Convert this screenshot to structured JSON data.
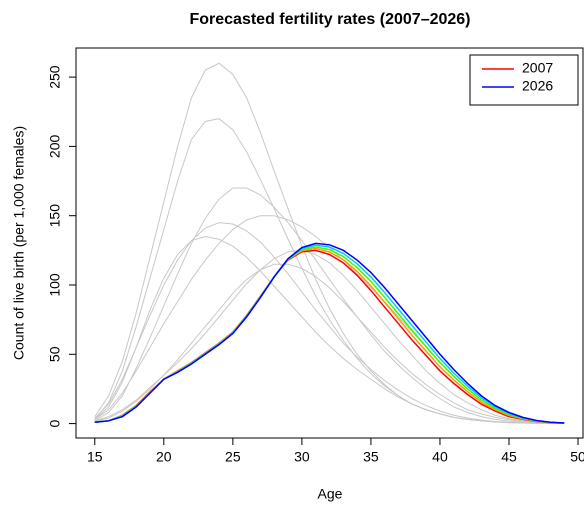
{
  "chart_data": {
    "type": "line",
    "title": "Forecasted fertility rates (2007–2026)",
    "xlabel": "Age",
    "ylabel": "Count of live birth (per 1,000 females)",
    "x": [
      15,
      16,
      17,
      18,
      19,
      20,
      21,
      22,
      23,
      24,
      25,
      26,
      27,
      28,
      29,
      30,
      31,
      32,
      33,
      34,
      35,
      36,
      37,
      38,
      39,
      40,
      41,
      42,
      43,
      44,
      45,
      46,
      47,
      48,
      49
    ],
    "series": [
      {
        "color": "#c8c8c8",
        "values": [
          5,
          20,
          45,
          80,
          120,
          160,
          200,
          235,
          255,
          260,
          252,
          235,
          210,
          182,
          155,
          128,
          104,
          83,
          65,
          50,
          38,
          28,
          20,
          14,
          10,
          7,
          4.5,
          3,
          2,
          1.2,
          0.7,
          0.4,
          0.2,
          0.1,
          0.05
        ]
      },
      {
        "color": "#c8c8c8",
        "values": [
          3,
          15,
          38,
          70,
          105,
          140,
          175,
          205,
          218,
          220,
          212,
          196,
          176,
          155,
          133,
          112,
          92,
          75,
          60,
          47,
          36,
          27,
          20,
          14,
          10,
          7,
          4.5,
          3,
          2,
          1.2,
          0.7,
          0.4,
          0.2,
          0.1,
          0.05
        ]
      },
      {
        "color": "#c8c8c8",
        "values": [
          2,
          8,
          20,
          40,
          62,
          85,
          108,
          130,
          148,
          162,
          170,
          170,
          165,
          156,
          145,
          132,
          118,
          104,
          90,
          77,
          64,
          52,
          42,
          33,
          25,
          18,
          12,
          8,
          5,
          3,
          1.8,
          1,
          0.5,
          0.2,
          0.1
        ]
      },
      {
        "color": "#c8c8c8",
        "values": [
          3,
          10,
          22,
          38,
          55,
          72,
          88,
          104,
          118,
          130,
          140,
          147,
          150,
          150,
          147,
          142,
          135,
          127,
          118,
          108,
          98,
          88,
          77,
          66,
          55,
          44,
          34,
          25,
          17,
          11,
          7,
          4,
          2,
          1,
          0.4
        ]
      },
      {
        "color": "#c8c8c8",
        "values": [
          4,
          14,
          32,
          55,
          78,
          100,
          118,
          132,
          141,
          145,
          144,
          139,
          131,
          120,
          108,
          95,
          82,
          70,
          58,
          48,
          39,
          31,
          24,
          18,
          13,
          9,
          6,
          4,
          2.5,
          1.5,
          0.9,
          0.5,
          0.3,
          0.1,
          0.05
        ]
      },
      {
        "color": "#c8c8c8",
        "values": [
          2,
          5,
          10,
          17,
          26,
          35,
          44,
          54,
          65,
          77,
          89,
          101,
          111,
          119,
          124,
          125,
          122,
          116,
          107,
          96,
          84,
          72,
          60,
          49,
          38,
          29,
          21,
          15,
          10,
          6,
          3.5,
          2,
          1,
          0.5,
          0.2
        ]
      },
      {
        "color": "#c8c8c8",
        "values": [
          3,
          12,
          30,
          55,
          82,
          105,
          122,
          132,
          135,
          133,
          128,
          120,
          110,
          99,
          88,
          77,
          66,
          56,
          47,
          39,
          32,
          25,
          19,
          14,
          10,
          7,
          4.5,
          3,
          2,
          1.2,
          0.7,
          0.4,
          0.2,
          0.1,
          0.05
        ]
      },
      {
        "color": "#c8c8c8",
        "values": [
          1.5,
          4,
          9,
          16,
          25,
          35,
          46,
          58,
          70,
          82,
          94,
          104,
          111,
          115,
          115,
          112,
          106,
          98,
          88,
          77,
          66,
          55,
          45,
          36,
          28,
          21,
          15,
          10,
          7,
          4.5,
          2.8,
          1.6,
          0.9,
          0.4,
          0.15
        ]
      },
      {
        "name": "2007",
        "color": "#ff0000",
        "values": [
          1,
          2,
          6,
          13,
          23,
          32,
          38,
          44,
          51,
          58,
          66,
          78,
          92,
          106,
          118,
          124,
          125,
          122,
          116,
          107,
          96,
          84,
          72,
          60,
          49,
          38,
          29,
          21,
          14,
          9,
          5,
          3,
          1.5,
          0.7,
          0.3
        ]
      },
      {
        "color": "#ff9900",
        "values": [
          1,
          2,
          5.8,
          12.8,
          22.8,
          32,
          37.8,
          43.8,
          50.8,
          57.8,
          65.8,
          77.8,
          91.8,
          106,
          118.3,
          124.8,
          126.3,
          123.8,
          118.3,
          109.8,
          99.3,
          87.5,
          75.5,
          63.5,
          52.3,
          41,
          31.5,
          23,
          15.5,
          10,
          5.8,
          3.4,
          1.7,
          0.8,
          0.3
        ]
      },
      {
        "color": "#33ff00",
        "values": [
          1,
          2,
          5.5,
          12.5,
          22.5,
          32,
          37.5,
          43.5,
          50.5,
          57.5,
          65.5,
          77.5,
          91.5,
          106,
          118.5,
          125.5,
          127.5,
          125.5,
          120.5,
          112.5,
          102.5,
          91,
          79,
          67,
          55.5,
          44,
          34,
          25,
          17,
          11,
          6.5,
          3.75,
          1.85,
          0.85,
          0.35
        ]
      },
      {
        "color": "#00ccff",
        "values": [
          1,
          2,
          5.3,
          12.3,
          22.3,
          32,
          37.3,
          43.3,
          50.3,
          57.3,
          65.3,
          77.3,
          91.3,
          106,
          118.8,
          126.3,
          128.8,
          127.3,
          122.8,
          115.3,
          105.8,
          94.5,
          82.5,
          70.5,
          58.8,
          47,
          36.5,
          27,
          18.5,
          12,
          7.3,
          4.1,
          2,
          0.9,
          0.4
        ]
      },
      {
        "name": "2026",
        "color": "#0000ff",
        "values": [
          1,
          2,
          5,
          12,
          22,
          32,
          37,
          43,
          50,
          57,
          65,
          77,
          91,
          106,
          119,
          127,
          130,
          129,
          125,
          118,
          109,
          98,
          86,
          74,
          62,
          50,
          39,
          29,
          20,
          13,
          8,
          4.5,
          2.2,
          1,
          0.4
        ]
      }
    ],
    "xlim": [
      13.64,
      50.36
    ],
    "ylim": [
      -10.4,
      271
    ],
    "xticks": [
      15,
      20,
      25,
      30,
      35,
      40,
      45,
      50
    ],
    "yticks": [
      0,
      50,
      100,
      150,
      200,
      250
    ],
    "legend": "top-right"
  }
}
